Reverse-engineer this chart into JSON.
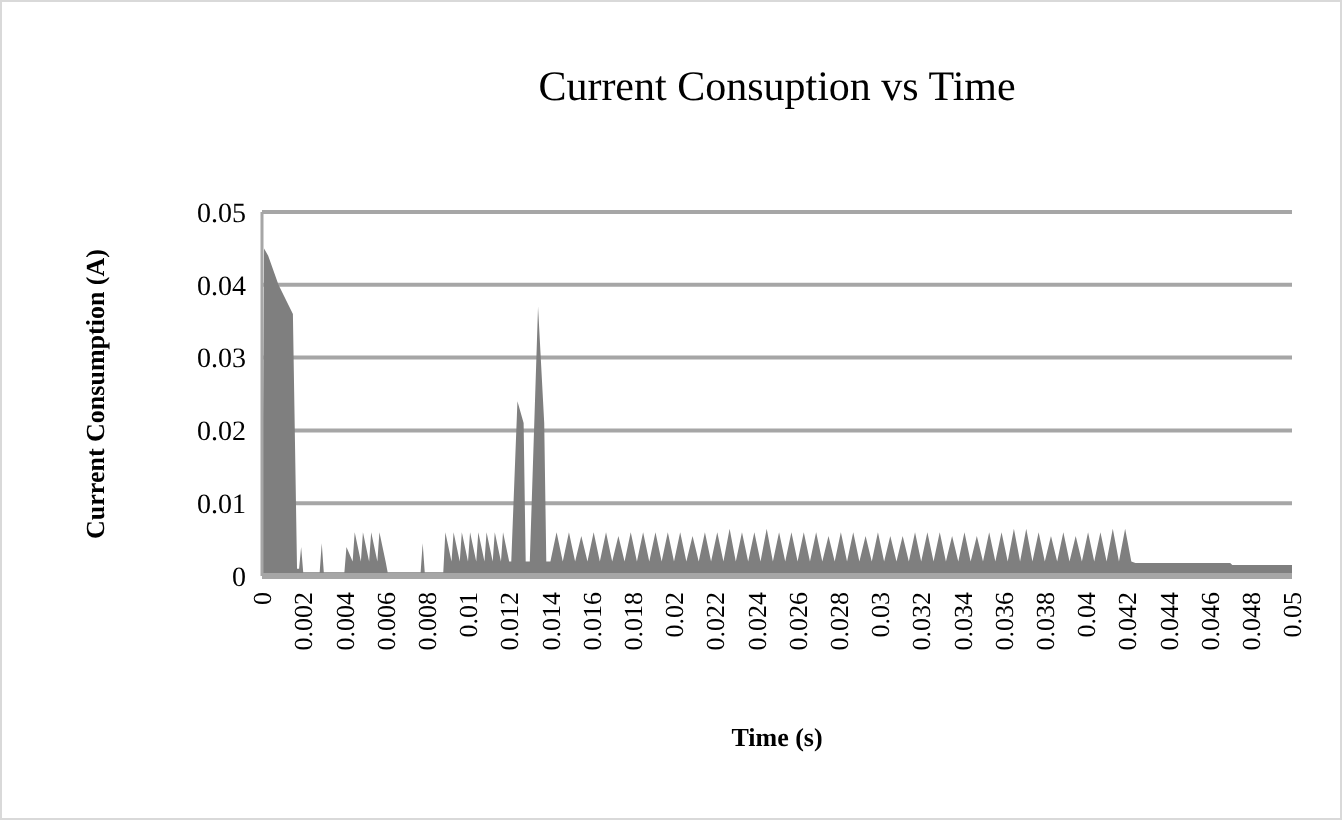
{
  "chart_data": {
    "type": "area",
    "title": "Current Consuption vs Time",
    "xlabel": "Time (s)",
    "ylabel": "Current Consumption (A)",
    "x": [
      0,
      0.0001,
      0.0003,
      0.0008,
      0.0015,
      0.0017,
      0.0018,
      0.0019,
      0.002,
      0.0028,
      0.0029,
      0.003,
      0.004,
      0.0041,
      0.0044,
      0.0045,
      0.0048,
      0.0049,
      0.0052,
      0.0053,
      0.0056,
      0.0057,
      0.006,
      0.0061,
      0.0077,
      0.0078,
      0.0079,
      0.0088,
      0.0089,
      0.0092,
      0.0093,
      0.0096,
      0.0097,
      0.01,
      0.0101,
      0.0104,
      0.0105,
      0.0108,
      0.0109,
      0.0112,
      0.0113,
      0.0116,
      0.0117,
      0.012,
      0.0121,
      0.0124,
      0.0127,
      0.0128,
      0.013,
      0.0134,
      0.0137,
      0.0138,
      0.014,
      0.0143,
      0.0146,
      0.0149,
      0.0152,
      0.0155,
      0.0158,
      0.0161,
      0.0164,
      0.0167,
      0.017,
      0.0173,
      0.0176,
      0.0179,
      0.0182,
      0.0185,
      0.0188,
      0.0191,
      0.0194,
      0.0197,
      0.02,
      0.0203,
      0.0206,
      0.0209,
      0.0212,
      0.0215,
      0.0218,
      0.0221,
      0.0224,
      0.0227,
      0.023,
      0.0233,
      0.0236,
      0.0239,
      0.0242,
      0.0245,
      0.0248,
      0.0251,
      0.0254,
      0.0257,
      0.026,
      0.0263,
      0.0266,
      0.0269,
      0.0272,
      0.0275,
      0.0278,
      0.0281,
      0.0284,
      0.0287,
      0.029,
      0.0293,
      0.0296,
      0.0299,
      0.0302,
      0.0305,
      0.0308,
      0.0311,
      0.0314,
      0.0317,
      0.032,
      0.0323,
      0.0326,
      0.0329,
      0.0332,
      0.0335,
      0.0338,
      0.0341,
      0.0344,
      0.0347,
      0.035,
      0.0353,
      0.0356,
      0.0359,
      0.0362,
      0.0365,
      0.0368,
      0.0371,
      0.0374,
      0.0377,
      0.038,
      0.0383,
      0.0386,
      0.0389,
      0.0392,
      0.0395,
      0.0398,
      0.0401,
      0.0404,
      0.0407,
      0.041,
      0.0413,
      0.0416,
      0.0419,
      0.0422,
      0.0424,
      0.047,
      0.0471,
      0.05
    ],
    "values": [
      0,
      0.045,
      0.044,
      0.04,
      0.036,
      0.001,
      0.001,
      0.004,
      0.0005,
      0.0005,
      0.0045,
      0.0005,
      0.0005,
      0.004,
      0.002,
      0.006,
      0.002,
      0.006,
      0.002,
      0.006,
      0.002,
      0.006,
      0.002,
      0.0005,
      0.0005,
      0.0045,
      0.0005,
      0.0005,
      0.006,
      0.002,
      0.006,
      0.002,
      0.006,
      0.002,
      0.006,
      0.002,
      0.006,
      0.002,
      0.006,
      0.002,
      0.006,
      0.002,
      0.006,
      0.002,
      0.002,
      0.024,
      0.021,
      0.002,
      0.002,
      0.037,
      0.021,
      0.002,
      0.002,
      0.006,
      0.002,
      0.006,
      0.002,
      0.0055,
      0.002,
      0.006,
      0.002,
      0.006,
      0.002,
      0.0055,
      0.002,
      0.006,
      0.002,
      0.006,
      0.002,
      0.006,
      0.002,
      0.006,
      0.002,
      0.006,
      0.002,
      0.0055,
      0.002,
      0.006,
      0.002,
      0.006,
      0.002,
      0.0065,
      0.002,
      0.006,
      0.002,
      0.006,
      0.002,
      0.0065,
      0.002,
      0.006,
      0.002,
      0.006,
      0.002,
      0.006,
      0.002,
      0.006,
      0.002,
      0.0055,
      0.002,
      0.006,
      0.002,
      0.006,
      0.002,
      0.0055,
      0.002,
      0.006,
      0.002,
      0.0055,
      0.002,
      0.0055,
      0.002,
      0.006,
      0.002,
      0.006,
      0.002,
      0.006,
      0.002,
      0.0055,
      0.002,
      0.006,
      0.002,
      0.0055,
      0.002,
      0.006,
      0.002,
      0.006,
      0.002,
      0.0065,
      0.002,
      0.0065,
      0.002,
      0.006,
      0.002,
      0.0055,
      0.002,
      0.006,
      0.002,
      0.0055,
      0.002,
      0.006,
      0.002,
      0.006,
      0.002,
      0.0065,
      0.002,
      0.0065,
      0.002,
      0.0018,
      0.0018,
      0.0015,
      0.0015
    ],
    "color": "#7f7f7f",
    "xlim": [
      0,
      0.05
    ],
    "xticks": [
      0,
      0.002,
      0.004,
      0.006,
      0.008,
      0.01,
      0.012,
      0.014,
      0.016,
      0.018,
      0.02,
      0.022,
      0.024,
      0.026,
      0.028,
      0.03,
      0.032,
      0.034,
      0.036,
      0.038,
      0.04,
      0.042,
      0.044,
      0.046,
      0.048,
      0.05
    ],
    "ylim": [
      0,
      0.05
    ],
    "yticks": [
      0,
      0.01,
      0.02,
      0.03,
      0.04,
      0.05
    ],
    "grid": "y"
  }
}
